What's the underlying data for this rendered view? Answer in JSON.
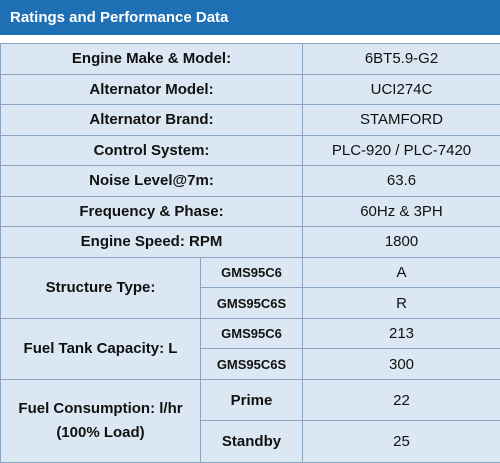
{
  "header": {
    "title": "Ratings and Performance Data"
  },
  "rows": [
    {
      "label": "Engine Make & Model:",
      "value": "6BT5.9-G2"
    },
    {
      "label": "Alternator Model:",
      "value": "UCI274C"
    },
    {
      "label": "Alternator Brand:",
      "value": "STAMFORD"
    },
    {
      "label": "Control System:",
      "value": "PLC-920 / PLC-7420"
    },
    {
      "label": "Noise Level@7m:",
      "value": "63.6"
    },
    {
      "label": "Frequency & Phase:",
      "value": "60Hz & 3PH"
    },
    {
      "label": "Engine Speed: RPM",
      "value": "1800"
    }
  ],
  "structure": {
    "label": "Structure Type:",
    "items": [
      {
        "model": "GMS95C6",
        "value": "A"
      },
      {
        "model": "GMS95C6S",
        "value": "R"
      }
    ]
  },
  "fuel_tank": {
    "label": "Fuel Tank Capacity: L",
    "items": [
      {
        "model": "GMS95C6",
        "value": "213"
      },
      {
        "model": "GMS95C6S",
        "value": "300"
      }
    ]
  },
  "fuel_consumption": {
    "label_line1": "Fuel Consumption: l/hr",
    "label_line2": "(100% Load)",
    "items": [
      {
        "mode": "Prime",
        "value": "22"
      },
      {
        "mode": "Standby",
        "value": "25"
      }
    ]
  }
}
